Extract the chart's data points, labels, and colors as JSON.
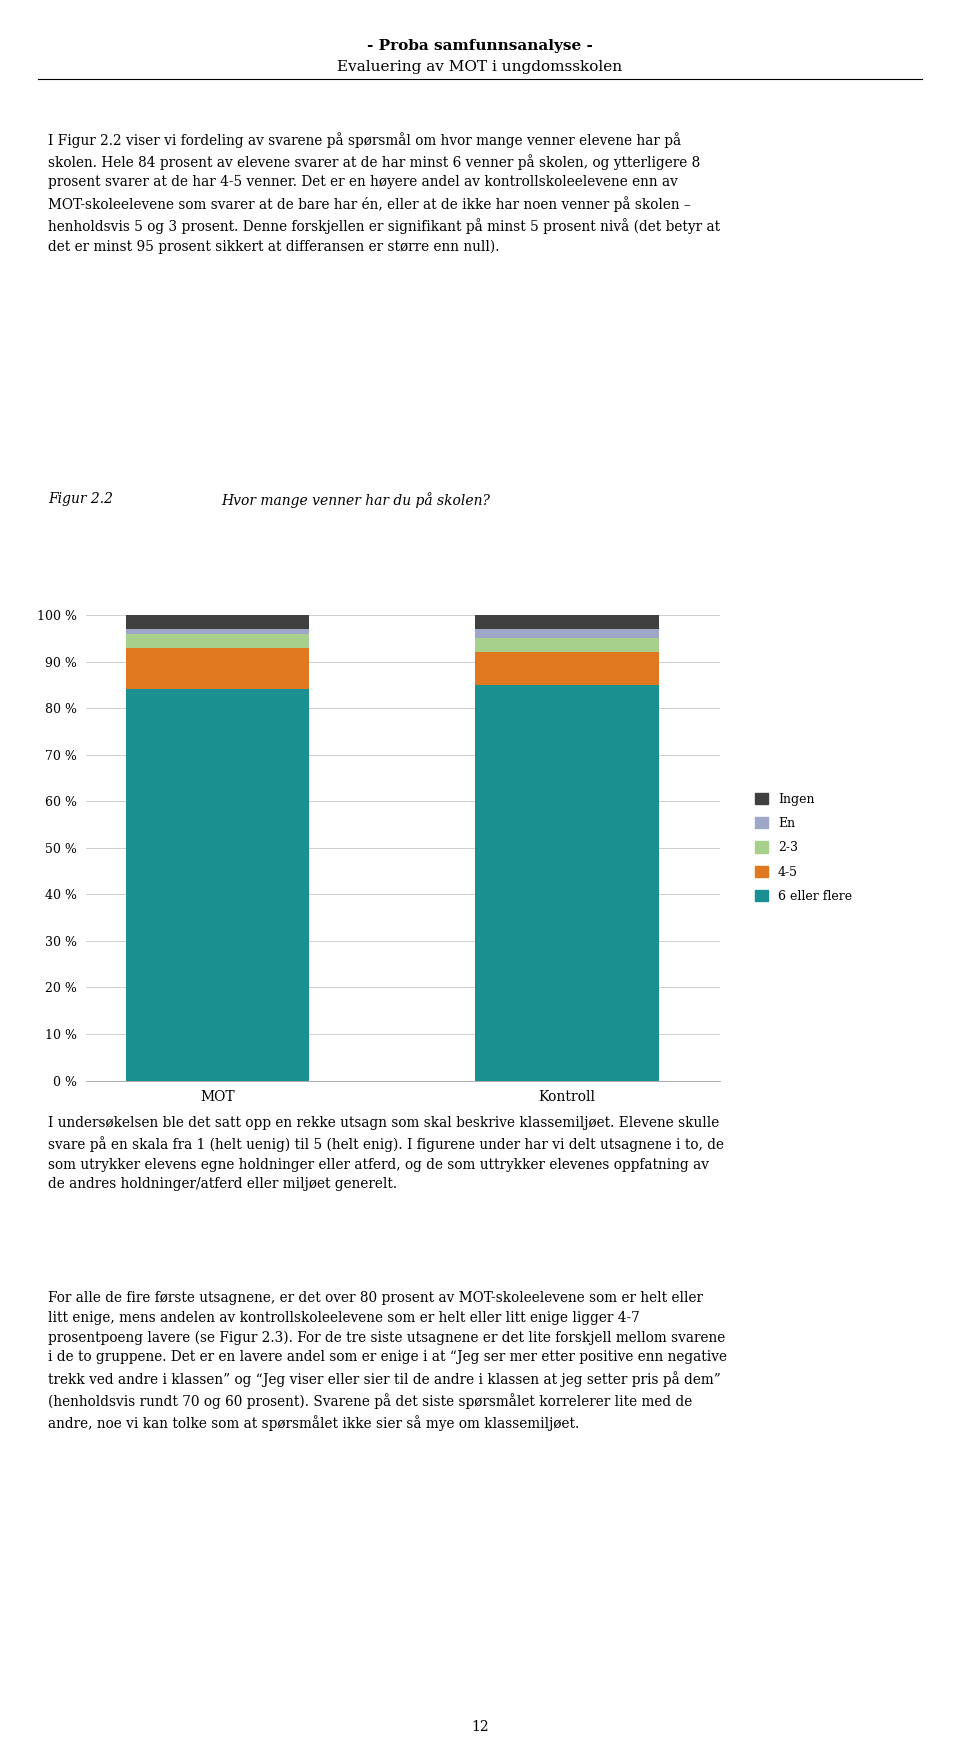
{
  "categories": [
    "MOT",
    "Kontroll"
  ],
  "series": [
    {
      "label": "6 eller flere",
      "values": [
        84,
        85
      ],
      "color": "#1a9090"
    },
    {
      "label": "4-5",
      "values": [
        9,
        7
      ],
      "color": "#e07820"
    },
    {
      "label": "2-3",
      "values": [
        3,
        3
      ],
      "color": "#a8d08d"
    },
    {
      "label": "En",
      "values": [
        1,
        2
      ],
      "color": "#9ea7c8"
    },
    {
      "label": "Ingen",
      "values": [
        3,
        3
      ],
      "color": "#404040"
    }
  ],
  "header_line1": "- Proba samfunnsanalyse -",
  "header_line2": "Evaluering av MOT i ungdomsskolen",
  "fig_label": "Figur 2.2",
  "fig_title": "Hvor mange venner har du på skolen?",
  "body_text1": "I Figur 2.2 viser vi fordeling av svarene på spørsmål om hvor mange venner elevene har på\nskolen. Hele 84 prosent av elevene svarer at de har minst 6 venner på skolen, og ytterligere 8\nprosent svarer at de har 4-5 venner. Det er en høyere andel av kontrollskoleelevene enn av\nMOT-skoleelevene som svarer at de bare har én, eller at de ikke har noen venner på skolen –\nhenholdsvis 5 og 3 prosent. Denne forskjellen er signifikant på minst 5 prosent nivå (det betyr at\ndet er minst 95 prosent sikkert at differansen er større enn null).",
  "body_text2": "I undersøkelsen ble det satt opp en rekke utsagn som skal beskrive klassemiljøet. Elevene skulle\nsvare på en skala fra 1 (helt uenig) til 5 (helt enig). I figurene under har vi delt utsagnene i to, de\nsom utrykker elevens egne holdninger eller atferd, og de som uttrykker elevenes oppfatning av\nde andres holdninger/atferd eller miljøet generelt.",
  "body_text3": "For alle de fire første utsagnene, er det over 80 prosent av MOT-skoleelevene som er helt eller\nlitt enige, mens andelen av kontrollskoleelevene som er helt eller litt enige ligger 4-7\nprosentpoeng lavere (se Figur 2.3). For de tre siste utsagnene er det lite forskjell mellom svarene\ni de to gruppene. Det er en lavere andel som er enige i at “Jeg ser mer etter positive enn negative\ntrekk ved andre i klassen” og “Jeg viser eller sier til de andre i klassen at jeg setter pris på dem”\n(henholdsvis rundt 70 og 60 prosent). Svarene på det siste spørsmålet korrelerer lite med de\nandre, noe vi kan tolke som at spørsmålet ikke sier så mye om klassemiljøet.",
  "page_number": "12",
  "ylim": [
    0,
    100
  ],
  "yticks": [
    0,
    10,
    20,
    30,
    40,
    50,
    60,
    70,
    80,
    90,
    100
  ],
  "background_color": "#ffffff",
  "bar_width": 0.42,
  "bar_positions": [
    0.3,
    1.1
  ]
}
